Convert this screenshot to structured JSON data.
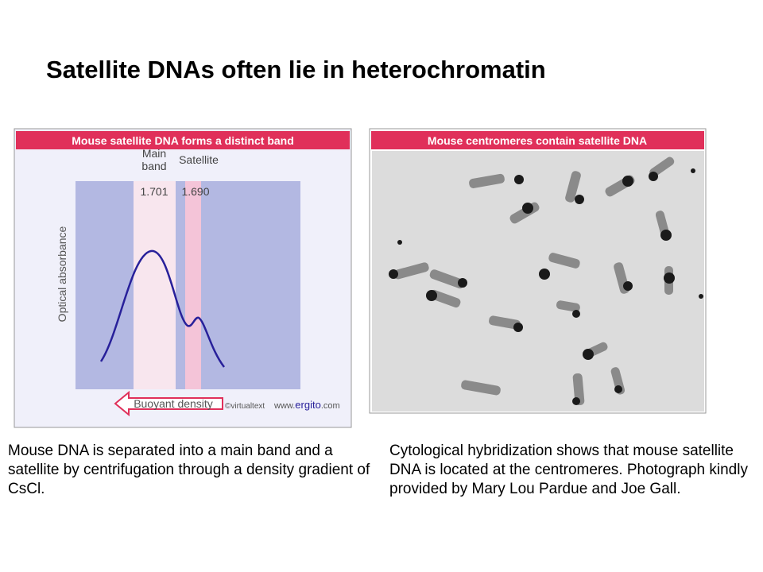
{
  "header": {
    "title": "Satellite DNAs often lie in heterochromatin"
  },
  "left_figure": {
    "banner": "Mouse satellite DNA forms a distinct band",
    "main_band_label": "Main band",
    "satellite_label": "Satellite",
    "main_density": "1.701",
    "satellite_density": "1.690",
    "y_label": "Optical absorbance",
    "x_label": "Buoyant density",
    "credit": "©virtualtext",
    "site_prefix": "www.",
    "site_name": "ergito",
    "site_suffix": ".com"
  },
  "right_figure": {
    "banner": "Mouse centromeres contain satellite DNA"
  },
  "captions": {
    "left": "Mouse DNA is separated into a main band and a satellite by centrifugation through a density gradient of CsCl.",
    "right": "Cytological hybridization shows that mouse satellite DNA is located at the centromeres. Photograph kindly provided by Mary Lou Pardue and Joe Gall."
  }
}
